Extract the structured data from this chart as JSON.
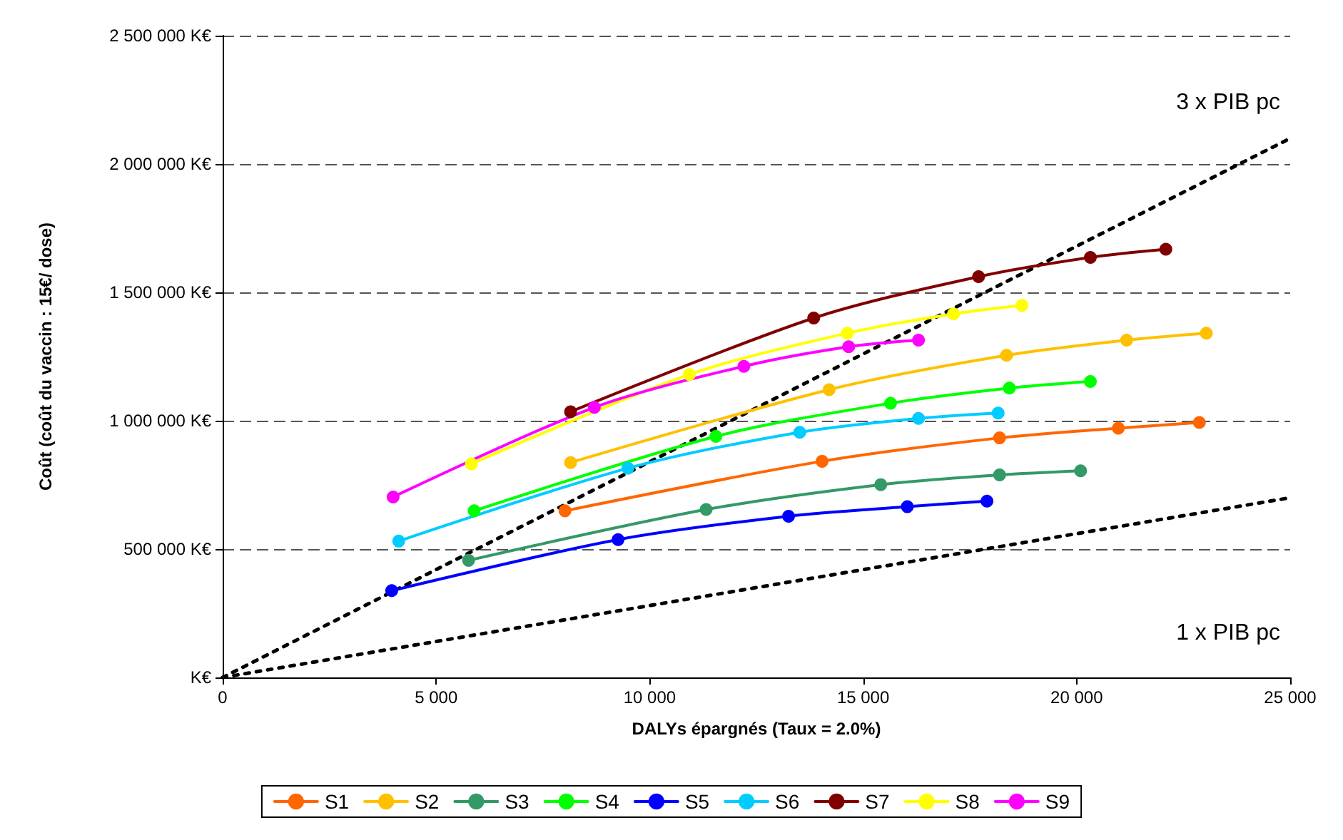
{
  "chart_data": {
    "type": "line",
    "xlabel": "DALYs épargnés (Taux = 2.0%)",
    "ylabel": "Coût (coût du vaccin : 15€/ dose)",
    "xlim": [
      0,
      25000
    ],
    "xticks": [
      0,
      {
        "value": 5000,
        "label": "5 000"
      },
      {
        "value": 10000,
        "label": "10 000"
      },
      {
        "value": 15000,
        "label": "15 000"
      },
      {
        "value": 20000,
        "label": "20 000"
      },
      {
        "value": 25000,
        "label": "25 000"
      }
    ],
    "ylim": [
      0,
      2500000
    ],
    "yticks": [
      {
        "value": 0,
        "label": "K€"
      },
      {
        "value": 500000,
        "label": "500 000 K€"
      },
      {
        "value": 1000000,
        "label": "1 000 000 K€"
      },
      {
        "value": 1500000,
        "label": "1 500 000 K€"
      },
      {
        "value": 2000000,
        "label": "2 000 000 K€"
      },
      {
        "value": 2500000,
        "label": "2 500 000 K€"
      }
    ],
    "grid": "y",
    "legend": "bottom",
    "marker": "circle",
    "line_style": "solid",
    "annotations": [
      "3 x PIB pc",
      "1 x PIB pc"
    ],
    "series": [
      {
        "name": "S1",
        "color": "#ff6600",
        "x": [
          8017,
          14038,
          18194,
          20975,
          22873
        ],
        "values": [
          649000,
          842000,
          933000,
          971000,
          993000
        ]
      },
      {
        "name": "S2",
        "color": "#ffc000",
        "x": [
          8148,
          14202,
          18357,
          21171,
          23037
        ],
        "values": [
          837000,
          1121000,
          1255000,
          1314000,
          1341000
        ]
      },
      {
        "name": "S3",
        "color": "#339966",
        "x": [
          5759,
          11322,
          15412,
          18194,
          20092
        ],
        "values": [
          456000,
          654000,
          751000,
          789000,
          805000
        ]
      },
      {
        "name": "S4",
        "color": "#00ff00",
        "x": [
          5890,
          11551,
          15641,
          18423,
          20320
        ],
        "values": [
          649000,
          939000,
          1068000,
          1127000,
          1153000
        ]
      },
      {
        "name": "S5",
        "color": "#0000ff",
        "x": [
          3959,
          9260,
          13253,
          16034,
          17899
        ],
        "values": [
          338000,
          537000,
          628000,
          665000,
          687000
        ]
      },
      {
        "name": "S6",
        "color": "#00ccff",
        "x": [
          4123,
          9490,
          13514,
          16296,
          18161
        ],
        "values": [
          531000,
          815000,
          955000,
          1009000,
          1030000
        ]
      },
      {
        "name": "S7",
        "color": "#800000",
        "x": [
          8148,
          13842,
          17703,
          20321,
          22088
        ],
        "values": [
          1035000,
          1400000,
          1561000,
          1636000,
          1668000
        ]
      },
      {
        "name": "S8",
        "color": "#ffff00",
        "x": [
          5825,
          10929,
          14627,
          17114,
          18718
        ],
        "values": [
          832000,
          1180000,
          1341000,
          1416000,
          1449000
        ]
      },
      {
        "name": "S9",
        "color": "#ff00ff",
        "x": [
          3992,
          8704,
          12206,
          14660,
          16296
        ],
        "values": [
          703000,
          1052000,
          1212000,
          1288000,
          1314000
        ]
      },
      {
        "color": "#000000",
        "x": [
          0,
          25000
        ],
        "values": [
          0,
          2100000
        ],
        "line_style": "dotted",
        "marker": "none"
      },
      {
        "color": "#000000",
        "x": [
          0,
          25000
        ],
        "values": [
          0,
          700000
        ],
        "line_style": "dotted",
        "marker": "none"
      }
    ]
  }
}
